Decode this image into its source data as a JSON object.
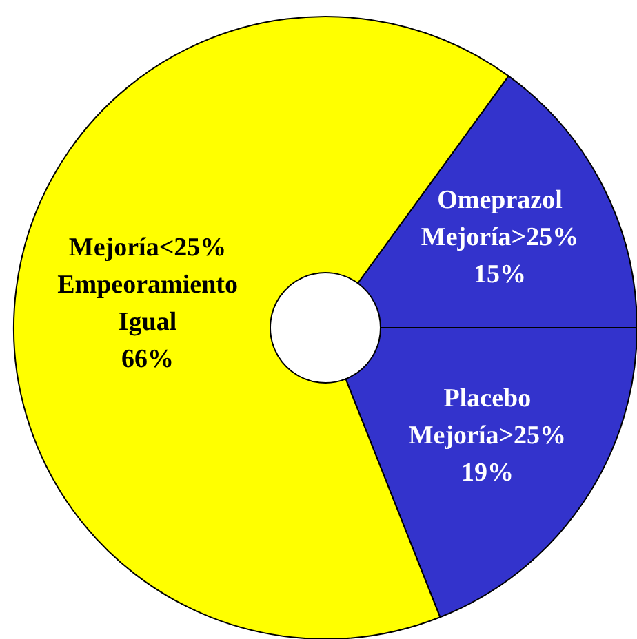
{
  "chart_data": {
    "type": "donut",
    "categories": [
      "Omeprazol\nMejoría>25%",
      "Placebo\nMejoría>25%",
      "Mejoría<25%\nEmpeoramiento\nIgual"
    ],
    "values": [
      15,
      19,
      66
    ],
    "value_labels": [
      "15%",
      "19%",
      "66%"
    ],
    "colors": [
      "#3333cc",
      "#3333cc",
      "#ffff00"
    ]
  }
}
